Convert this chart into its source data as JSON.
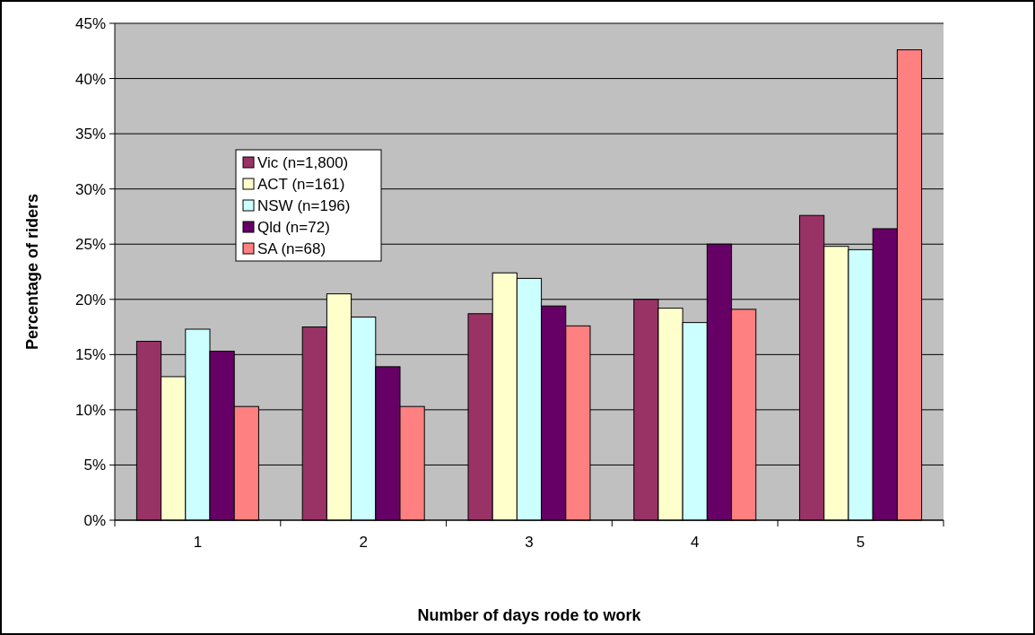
{
  "chart_data": {
    "type": "bar",
    "xlabel": "Number of days rode to work",
    "ylabel": "Percentage of riders",
    "categories": [
      "1",
      "2",
      "3",
      "4",
      "5"
    ],
    "series": [
      {
        "name": "Vic (n=1,800)",
        "color": "#993366",
        "values": [
          16.2,
          17.5,
          18.7,
          20.0,
          27.6
        ]
      },
      {
        "name": "ACT (n=161)",
        "color": "#ffffcc",
        "values": [
          13.0,
          20.5,
          22.4,
          19.2,
          24.8
        ]
      },
      {
        "name": "NSW (n=196)",
        "color": "#ccffff",
        "values": [
          17.3,
          18.4,
          21.9,
          17.9,
          24.5
        ]
      },
      {
        "name": "Qld (n=72)",
        "color": "#660066",
        "values": [
          15.3,
          13.9,
          19.4,
          25.0,
          26.4
        ]
      },
      {
        "name": "SA (n=68)",
        "color": "#ff8080",
        "values": [
          10.3,
          10.3,
          17.6,
          19.1,
          42.6
        ]
      }
    ],
    "ylim": [
      0,
      45
    ],
    "yticks": [
      {
        "value": 0,
        "label": "0%"
      },
      {
        "value": 5,
        "label": "5%"
      },
      {
        "value": 10,
        "label": "10%"
      },
      {
        "value": 15,
        "label": "15%"
      },
      {
        "value": 20,
        "label": "20%"
      },
      {
        "value": 25,
        "label": "25%"
      },
      {
        "value": 30,
        "label": "30%"
      },
      {
        "value": 35,
        "label": "35%"
      },
      {
        "value": 40,
        "label": "40%"
      },
      {
        "value": 45,
        "label": "45%"
      }
    ],
    "grid": "y",
    "legend": "top left"
  }
}
